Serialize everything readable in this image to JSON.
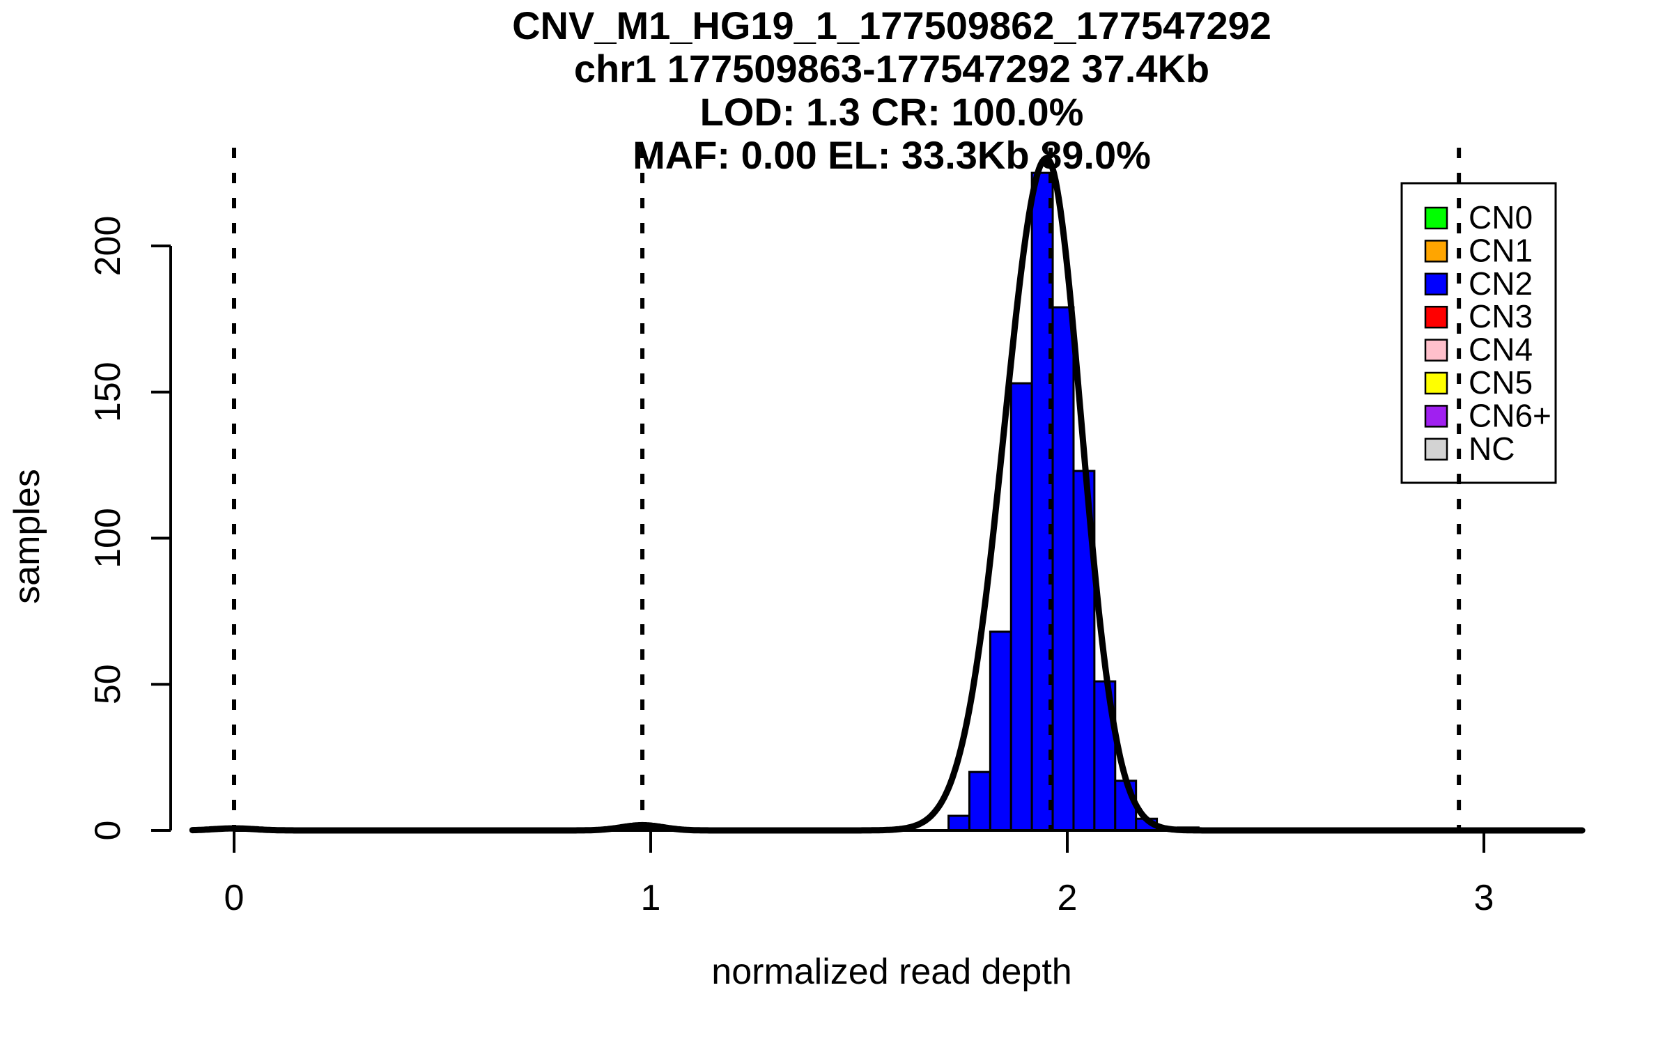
{
  "chart_data": {
    "type": "bar",
    "subtype": "histogram-with-density",
    "title_lines": [
      "CNV_M1_HG19_1_177509862_177547292",
      "chr1 177509863-177547292 37.4Kb",
      "LOD: 1.3 CR: 100.0%",
      "MAF: 0.00 EL: 33.3Kb 89.0%"
    ],
    "xlabel": "normalized read depth",
    "ylabel": "samples",
    "x_ticks": [
      0,
      1,
      2,
      3
    ],
    "x_tick_labels": [
      "0",
      "1",
      "2",
      "3"
    ],
    "y_ticks": [
      0,
      50,
      100,
      150,
      200
    ],
    "y_tick_labels": [
      "0",
      "50",
      "100",
      "150",
      "200"
    ],
    "xlim": [
      -0.15,
      3.35
    ],
    "ylim": [
      0,
      233
    ],
    "grid": false,
    "bin_width": 0.05,
    "bins": [
      {
        "x0": 1.715,
        "x1": 1.765,
        "count": 5
      },
      {
        "x0": 1.765,
        "x1": 1.815,
        "count": 20
      },
      {
        "x0": 1.815,
        "x1": 1.865,
        "count": 68
      },
      {
        "x0": 1.865,
        "x1": 1.915,
        "count": 153
      },
      {
        "x0": 1.915,
        "x1": 1.965,
        "count": 225
      },
      {
        "x0": 1.965,
        "x1": 2.015,
        "count": 179
      },
      {
        "x0": 2.015,
        "x1": 2.065,
        "count": 123
      },
      {
        "x0": 2.065,
        "x1": 2.115,
        "count": 51
      },
      {
        "x0": 2.115,
        "x1": 2.165,
        "count": 17
      },
      {
        "x0": 2.165,
        "x1": 2.215,
        "count": 4
      },
      {
        "x0": 2.265,
        "x1": 2.315,
        "count": 1
      }
    ],
    "trace_bins": [
      {
        "x0": -0.05,
        "x1": 0.18,
        "count": 0.4
      },
      {
        "x0": 0.78,
        "x1": 1.18,
        "count": 0.5
      },
      {
        "x0": 2.59,
        "x1": 3.11,
        "count": 0.7
      }
    ],
    "density_curve": {
      "color": "#000000",
      "domain": [
        -0.1,
        3.24
      ],
      "main_peak": {
        "mu": 1.95,
        "amp": 230,
        "sigma_left": 0.1,
        "sigma_right": 0.084
      },
      "minor_bumps": [
        {
          "mu": 0.0,
          "amp": 0.7,
          "sigma": 0.05
        },
        {
          "mu": 0.98,
          "amp": 1.8,
          "sigma": 0.05
        }
      ]
    },
    "dashed_guide_lines_x": [
      0,
      0.98,
      1.96,
      2.94
    ],
    "legend": {
      "position": "top-right",
      "items": [
        {
          "label": "CN0",
          "color": "#00FF00"
        },
        {
          "label": "CN1",
          "color": "#FFA500"
        },
        {
          "label": "CN2",
          "color": "#0000FF"
        },
        {
          "label": "CN3",
          "color": "#FF0000"
        },
        {
          "label": "CN4",
          "color": "#FFC0CB"
        },
        {
          "label": "CN5",
          "color": "#FFFF00"
        },
        {
          "label": "CN6+",
          "color": "#A020F0"
        },
        {
          "label": "NC",
          "color": "#D3D3D3"
        }
      ]
    },
    "colors": {
      "bar_fill": "#0000FF",
      "bar_border": "#000000",
      "axis": "#000000",
      "guide_line": "#000000",
      "background": "#FFFFFF"
    }
  }
}
